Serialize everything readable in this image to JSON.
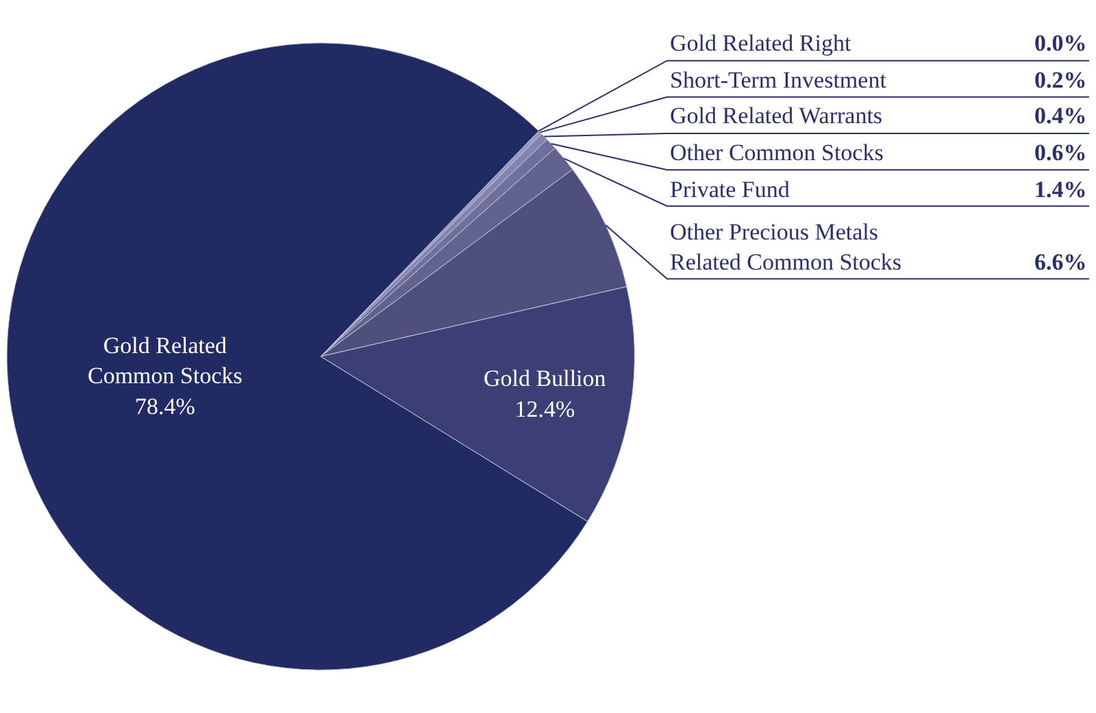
{
  "chart_data": {
    "type": "pie",
    "categories": [
      "Gold Related Right",
      "Short-Term Investment",
      "Gold Related Warrants",
      "Other Common Stocks",
      "Private Fund",
      "Other Precious Metals\nRelated Common Stocks",
      "Gold Bullion",
      "Gold Related\nCommon Stocks"
    ],
    "values": [
      0.0,
      0.2,
      0.4,
      0.6,
      1.4,
      6.6,
      12.4,
      78.4
    ],
    "value_labels": [
      "0.0%",
      "0.2%",
      "0.4%",
      "0.6%",
      "1.4%",
      "6.6%",
      "12.4%",
      "78.4%"
    ],
    "colors": [
      "#a9abcb",
      "#9597bd",
      "#8284ad",
      "#6e6f9c",
      "#62628f",
      "#4f4f7d",
      "#3c3f75",
      "#222a63"
    ],
    "legend": false
  }
}
